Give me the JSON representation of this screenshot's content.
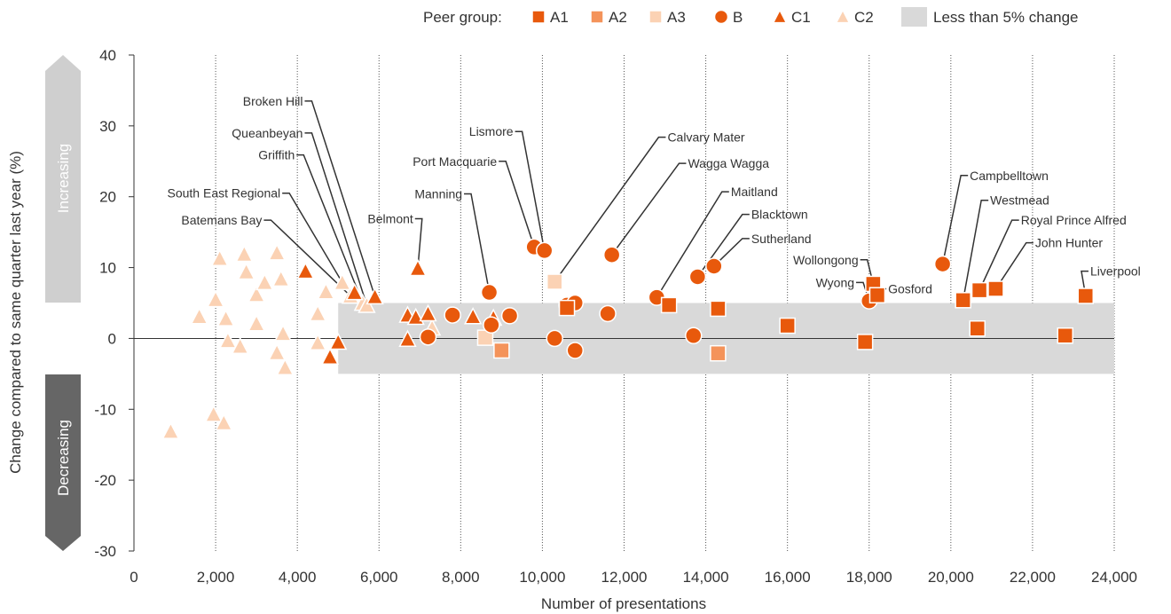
{
  "chart_data": {
    "type": "scatter",
    "xlabel": "Number of presentations",
    "ylabel": "Change compared to same quarter last year (%)",
    "xlim": [
      0,
      24000
    ],
    "ylim": [
      -30,
      40
    ],
    "x_ticks": [
      "0",
      "2,000",
      "4,000",
      "6,000",
      "8,000",
      "10,000",
      "12,000",
      "14,000",
      "16,000",
      "18,000",
      "20,000",
      "22,000",
      "24,000"
    ],
    "y_ticks": [
      "40",
      "30",
      "20",
      "10",
      "0",
      "-10",
      "-20",
      "-30"
    ],
    "grid": "vertical dotted",
    "band": {
      "label": "Less than 5% change",
      "x": [
        5000,
        24000
      ],
      "y": [
        -5,
        5
      ],
      "color": "#d9d9d9"
    },
    "direction_labels": {
      "increasing": "Increasing",
      "decreasing": "Decreasing"
    },
    "legend": {
      "title": "Peer group:",
      "placement": "top-right",
      "items": [
        {
          "key": "A1",
          "label": "A1",
          "shape": "square",
          "color": "#e8590c"
        },
        {
          "key": "A2",
          "label": "A2",
          "shape": "square",
          "color": "#f4935a"
        },
        {
          "key": "A3",
          "label": "A3",
          "shape": "square",
          "color": "#fbd2b4"
        },
        {
          "key": "B",
          "label": "B",
          "shape": "circle",
          "color": "#e8590c"
        },
        {
          "key": "C1",
          "label": "C1",
          "shape": "triangle",
          "color": "#e8590c"
        },
        {
          "key": "C2",
          "label": "C2",
          "shape": "triangle",
          "color": "#fbd2b4"
        }
      ]
    },
    "series": [
      {
        "name": "A1",
        "points": [
          [
            10600,
            4.3
          ],
          [
            13100,
            4.7
          ],
          [
            14300,
            4.2
          ],
          [
            16000,
            1.8
          ],
          [
            17900,
            -0.5
          ],
          [
            18100,
            7.7
          ],
          [
            18200,
            6.1
          ],
          [
            20300,
            5.4
          ],
          [
            20700,
            6.8
          ],
          [
            20650,
            1.4
          ],
          [
            21100,
            7.0
          ],
          [
            22800,
            0.4
          ],
          [
            23300,
            6.0
          ]
        ]
      },
      {
        "name": "A2",
        "points": [
          [
            9000,
            -1.7
          ],
          [
            14300,
            -2.1
          ]
        ]
      },
      {
        "name": "A3",
        "points": [
          [
            8600,
            0.1
          ],
          [
            10300,
            8.0
          ]
        ]
      },
      {
        "name": "B",
        "points": [
          [
            7200,
            0.2
          ],
          [
            7800,
            3.3
          ],
          [
            8700,
            6.5
          ],
          [
            8750,
            1.9
          ],
          [
            9200,
            3.2
          ],
          [
            9800,
            12.9
          ],
          [
            10050,
            12.4
          ],
          [
            10300,
            0.0
          ],
          [
            10600,
            4.7
          ],
          [
            10800,
            5.0
          ],
          [
            10800,
            -1.7
          ],
          [
            11600,
            3.5
          ],
          [
            11700,
            11.8
          ],
          [
            12800,
            5.8
          ],
          [
            13700,
            0.4
          ],
          [
            13800,
            8.7
          ],
          [
            14200,
            10.2
          ],
          [
            18000,
            5.3
          ],
          [
            19800,
            10.5
          ]
        ]
      },
      {
        "name": "C1",
        "points": [
          [
            4200,
            9.5
          ],
          [
            4800,
            -2.6
          ],
          [
            5000,
            -0.5
          ],
          [
            5400,
            6.5
          ],
          [
            5900,
            5.9
          ],
          [
            6700,
            3.3
          ],
          [
            6700,
            -0.1
          ],
          [
            6900,
            3.0
          ],
          [
            6950,
            9.9
          ],
          [
            7200,
            3.5
          ],
          [
            8300,
            3.1
          ],
          [
            8800,
            2.9
          ]
        ]
      },
      {
        "name": "C2",
        "points": [
          [
            900,
            -13.1
          ],
          [
            1600,
            3.1
          ],
          [
            1950,
            -10.7
          ],
          [
            2000,
            5.5
          ],
          [
            2100,
            11.3
          ],
          [
            2200,
            -11.9
          ],
          [
            2250,
            2.8
          ],
          [
            2300,
            -0.3
          ],
          [
            2600,
            -1.1
          ],
          [
            2700,
            11.9
          ],
          [
            2750,
            9.4
          ],
          [
            3000,
            2.1
          ],
          [
            3000,
            6.2
          ],
          [
            3200,
            7.9
          ],
          [
            3500,
            12.1
          ],
          [
            3500,
            -2.0
          ],
          [
            3600,
            8.4
          ],
          [
            3650,
            0.7
          ],
          [
            3700,
            -4.1
          ],
          [
            4500,
            -0.6
          ],
          [
            4500,
            3.5
          ],
          [
            4700,
            6.6
          ],
          [
            5100,
            7.9
          ],
          [
            5300,
            6.0
          ],
          [
            5600,
            5.0
          ],
          [
            5700,
            4.7
          ],
          [
            7300,
            1.5
          ]
        ]
      }
    ],
    "annotations": [
      {
        "text": "Broken Hill",
        "point": [
          5900,
          5.9
        ],
        "label": [
          4050,
          33.5
        ],
        "anchor": "end"
      },
      {
        "text": "Queanbeyan",
        "point": [
          5700,
          4.7
        ],
        "label": [
          4050,
          29.0
        ],
        "anchor": "end"
      },
      {
        "text": "Griffith",
        "point": [
          5600,
          5.0
        ],
        "label": [
          3850,
          25.9
        ],
        "anchor": "end"
      },
      {
        "text": "South East Regional",
        "point": [
          5100,
          7.9
        ],
        "label": [
          3500,
          20.5
        ],
        "anchor": "end"
      },
      {
        "text": "Batemans Bay",
        "point": [
          5300,
          6.0
        ],
        "label": [
          3050,
          16.7
        ],
        "anchor": "end"
      },
      {
        "text": "Belmont",
        "point": [
          6950,
          9.9
        ],
        "label": [
          6750,
          16.9
        ],
        "anchor": "end"
      },
      {
        "text": "Manning",
        "point": [
          8700,
          6.5
        ],
        "label": [
          7950,
          20.4
        ],
        "anchor": "end"
      },
      {
        "text": "Port Macquarie",
        "point": [
          9800,
          12.9
        ],
        "label": [
          8800,
          25.0
        ],
        "anchor": "end"
      },
      {
        "text": "Lismore",
        "point": [
          10050,
          12.4
        ],
        "label": [
          9200,
          29.2
        ],
        "anchor": "end"
      },
      {
        "text": "Calvary Mater",
        "point": [
          10300,
          8.0
        ],
        "label": [
          13150,
          28.4
        ],
        "anchor": "start"
      },
      {
        "text": "Wagga Wagga",
        "point": [
          11700,
          11.8
        ],
        "label": [
          13650,
          24.7
        ],
        "anchor": "start"
      },
      {
        "text": "Maitland",
        "point": [
          12800,
          5.8
        ],
        "label": [
          14700,
          20.7
        ],
        "anchor": "start"
      },
      {
        "text": "Blacktown",
        "point": [
          13800,
          8.7
        ],
        "label": [
          15200,
          17.5
        ],
        "anchor": "start"
      },
      {
        "text": "Sutherland",
        "point": [
          14200,
          10.2
        ],
        "label": [
          15200,
          14.1
        ],
        "anchor": "start"
      },
      {
        "text": "Wollongong",
        "point": [
          18100,
          7.7
        ],
        "label": [
          17650,
          11.1
        ],
        "anchor": "end"
      },
      {
        "text": "Wyong",
        "point": [
          18000,
          5.3
        ],
        "label": [
          17550,
          7.9
        ],
        "anchor": "end"
      },
      {
        "text": "Gosford",
        "point": [
          18200,
          6.1
        ],
        "label": [
          18550,
          7.0
        ],
        "anchor": "start"
      },
      {
        "text": "Campbelltown",
        "point": [
          19800,
          10.5
        ],
        "label": [
          20550,
          23.0
        ],
        "anchor": "start"
      },
      {
        "text": "Westmead",
        "point": [
          20300,
          5.4
        ],
        "label": [
          21050,
          19.5
        ],
        "anchor": "start"
      },
      {
        "text": "Royal Prince Alfred",
        "point": [
          20700,
          6.8
        ],
        "label": [
          21800,
          16.7
        ],
        "anchor": "start"
      },
      {
        "text": "John Hunter",
        "point": [
          21100,
          7.0
        ],
        "label": [
          22150,
          13.5
        ],
        "anchor": "start"
      },
      {
        "text": "Liverpool",
        "point": [
          23300,
          6.0
        ],
        "label": [
          23500,
          9.5
        ],
        "anchor": "start"
      }
    ]
  }
}
